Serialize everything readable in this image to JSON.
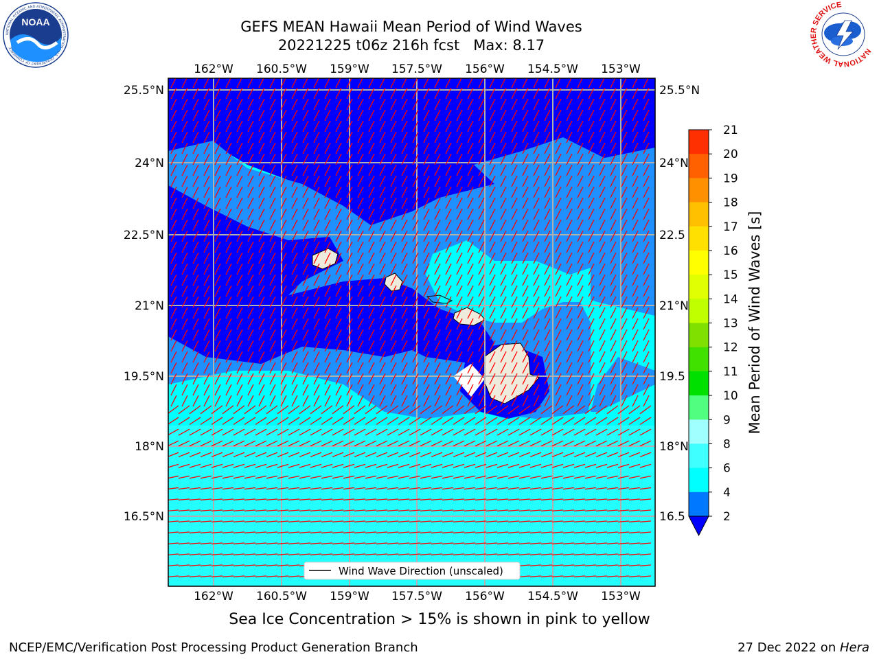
{
  "title_line1": "GEFS MEAN Hawaii Mean Period of Wind Waves",
  "title_line2": "20221225 t06z 216h fcst   Max: 8.17",
  "subtitle": "Sea Ice Concentration > 15% is shown in pink to yellow",
  "footer_left": "NCEP/EMC/Verification Post Processing Product Generation Branch",
  "footer_right_prefix": "27 Dec 2022 on ",
  "footer_right_host": "Hera",
  "legend_label": "Wind Wave Direction (unscaled)",
  "colorbar_label": "Mean Period of Wind Waves [s]",
  "logos": {
    "left": "noaa-logo",
    "right": "nws-logo"
  },
  "nws_ring_text": "NATIONAL WEATHER SERVICE",
  "noaa_text": "NOAA",
  "noaa_ring_text": "NATIONAL OCEANIC AND ATMOSPHERIC ADMINISTRATION · U.S. DEPARTMENT OF COMMERCE",
  "map": {
    "lon_labels": [
      "162°W",
      "160.5°W",
      "159°W",
      "157.5°W",
      "156°W",
      "154.5°W",
      "153°W"
    ],
    "lat_labels": [
      "25.5°N",
      "24°N",
      "22.5°N",
      "21°N",
      "19.5°N",
      "18°N",
      "16.5°N"
    ],
    "lat_labels_right": [
      "25.5°N",
      "24°N",
      "22.5",
      "21°N",
      "19.5",
      "18°N",
      "16.5"
    ],
    "colors": {
      "period_2_4": "#0000ff",
      "period_4_6": "#1e90ff",
      "period_6_8": "#00ffff",
      "period_8_9": "#40ffff",
      "arrow": "#ff0000",
      "land": "#efebdc",
      "grid": "#b0b0b0"
    }
  },
  "colorbar": {
    "ticks": [
      "2",
      "4",
      "6",
      "8",
      "9",
      "10",
      "11",
      "12",
      "13",
      "14",
      "15",
      "16",
      "17",
      "18",
      "19",
      "20",
      "21"
    ],
    "colors": [
      "#0078ff",
      "#00ffff",
      "#40ffff",
      "#a0ffff",
      "#50ff80",
      "#00e000",
      "#40e000",
      "#80e000",
      "#c0ff00",
      "#e0ff00",
      "#ffff00",
      "#ffe000",
      "#ffc000",
      "#ff9000",
      "#ff6000",
      "#ff3000"
    ],
    "extend_color": "#0000ff"
  }
}
